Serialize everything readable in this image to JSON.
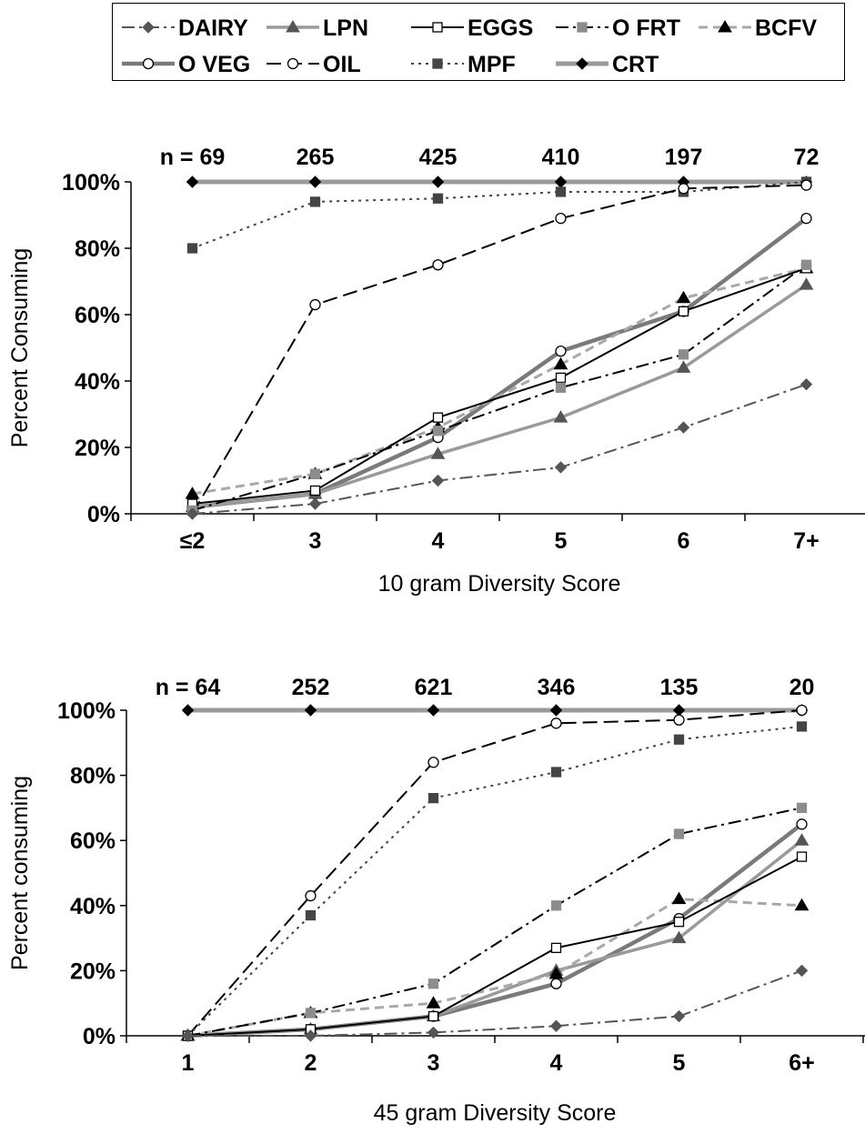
{
  "legend": {
    "items": [
      {
        "key": "DAIRY",
        "label": "DAIRY"
      },
      {
        "key": "LPN",
        "label": "LPN"
      },
      {
        "key": "EGGS",
        "label": "EGGS"
      },
      {
        "key": "OFRT",
        "label": "O FRT"
      },
      {
        "key": "BCFV",
        "label": "BCFV"
      },
      {
        "key": "OVEG",
        "label": "O VEG"
      },
      {
        "key": "OIL",
        "label": "OIL"
      },
      {
        "key": "MPF",
        "label": "MPF"
      },
      {
        "key": "CRT",
        "label": "CRT"
      }
    ]
  },
  "styles": {
    "DAIRY": {
      "color": "#555555",
      "dash": "14 5 3 5",
      "marker": "diamond",
      "fill": "#555555",
      "width": 2
    },
    "LPN": {
      "color": "#9a9a9a",
      "dash": "",
      "marker": "triangle",
      "fill": "#555555",
      "width": 3.5
    },
    "EGGS": {
      "color": "#000000",
      "dash": "",
      "marker": "square",
      "fill": "#ffffff",
      "width": 2
    },
    "OFRT": {
      "color": "#000000",
      "dash": "14 5 3 5",
      "marker": "square",
      "fill": "#8c8c8c",
      "width": 2
    },
    "BCFV": {
      "color": "#a8a8a8",
      "dash": "10 6",
      "marker": "triangle",
      "fill": "#000000",
      "width": 3
    },
    "OVEG": {
      "color": "#7a7a7a",
      "dash": "",
      "marker": "circle",
      "fill": "#ffffff",
      "width": 4.5
    },
    "OIL": {
      "color": "#000000",
      "dash": "16 7",
      "marker": "circle",
      "fill": "#ffffff",
      "width": 2
    },
    "MPF": {
      "color": "#444444",
      "dash": "3 5",
      "marker": "square",
      "fill": "#444444",
      "width": 2
    },
    "CRT": {
      "color": "#9a9a9a",
      "dash": "",
      "marker": "diamond",
      "fill": "#000000",
      "width": 5
    }
  },
  "chart_data": [
    {
      "type": "line",
      "xlabel": "10 gram Diversity Score",
      "ylabel": "Percent Consuming",
      "categories": [
        "≤2",
        "3",
        "4",
        "5",
        "6",
        "7+"
      ],
      "n_labels": [
        "n = 69",
        "265",
        "425",
        "410",
        "197",
        "72"
      ],
      "ylim": [
        0,
        100
      ],
      "yticks": [
        "0%",
        "20%",
        "40%",
        "60%",
        "80%",
        "100%"
      ],
      "series": [
        {
          "key": "CRT",
          "name": "CRT",
          "values": [
            100,
            100,
            100,
            100,
            100,
            100
          ]
        },
        {
          "key": "MPF",
          "name": "MPF",
          "values": [
            80,
            94,
            95,
            97,
            97,
            100
          ]
        },
        {
          "key": "OIL",
          "name": "OIL",
          "values": [
            null,
            63,
            75,
            89,
            98,
            99
          ]
        },
        {
          "key": "OVEG",
          "name": "O VEG",
          "values": [
            2,
            6,
            23,
            49,
            61,
            89
          ]
        },
        {
          "key": "EGGS",
          "name": "EGGS",
          "values": [
            3,
            7,
            29,
            41,
            61,
            74
          ]
        },
        {
          "key": "BCFV",
          "name": "BCFV",
          "values": [
            6,
            12,
            26,
            45,
            65,
            74
          ]
        },
        {
          "key": "OFRT",
          "name": "O FRT",
          "values": [
            1,
            12,
            25,
            38,
            48,
            75
          ]
        },
        {
          "key": "LPN",
          "name": "LPN",
          "values": [
            2,
            6,
            18,
            29,
            44,
            69
          ]
        },
        {
          "key": "DAIRY",
          "name": "DAIRY",
          "values": [
            0,
            3,
            10,
            14,
            26,
            39
          ]
        }
      ]
    },
    {
      "type": "line",
      "xlabel": "45 gram Diversity Score",
      "ylabel": "Percent consuming",
      "categories": [
        "1",
        "2",
        "3",
        "4",
        "5",
        "6+"
      ],
      "n_labels": [
        "n = 64",
        "252",
        "621",
        "346",
        "135",
        "20"
      ],
      "ylim": [
        0,
        100
      ],
      "yticks": [
        "0%",
        "20%",
        "40%",
        "60%",
        "80%",
        "100%"
      ],
      "series": [
        {
          "key": "CRT",
          "name": "CRT",
          "values": [
            100,
            100,
            100,
            100,
            100,
            100
          ]
        },
        {
          "key": "OIL",
          "name": "OIL",
          "values": [
            0,
            43,
            84,
            96,
            97,
            100
          ]
        },
        {
          "key": "MPF",
          "name": "MPF",
          "values": [
            0,
            37,
            73,
            81,
            91,
            95
          ]
        },
        {
          "key": "OFRT",
          "name": "O FRT",
          "values": [
            0,
            7,
            16,
            40,
            62,
            70
          ]
        },
        {
          "key": "OVEG",
          "name": "O VEG",
          "values": [
            0,
            2,
            6,
            16,
            36,
            65
          ]
        },
        {
          "key": "LPN",
          "name": "LPN",
          "values": [
            0,
            2,
            6,
            20,
            30,
            60
          ]
        },
        {
          "key": "EGGS",
          "name": "EGGS",
          "values": [
            0,
            2,
            6,
            27,
            35,
            55
          ]
        },
        {
          "key": "BCFV",
          "name": "BCFV",
          "values": [
            0,
            7,
            10,
            19,
            42,
            40
          ]
        },
        {
          "key": "DAIRY",
          "name": "DAIRY",
          "values": [
            0,
            0,
            1,
            3,
            6,
            20
          ]
        }
      ]
    }
  ]
}
